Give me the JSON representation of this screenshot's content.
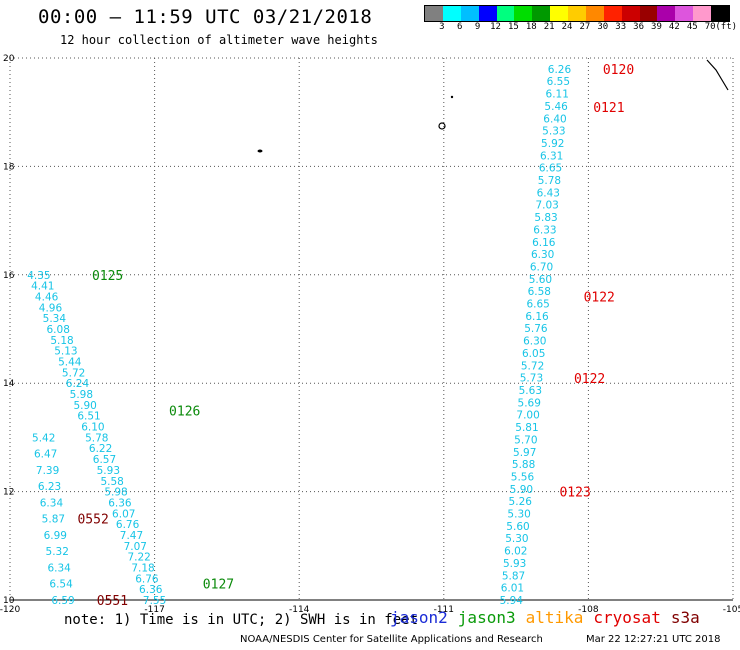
{
  "header": {
    "title": "00:00 – 11:59 UTC 03/21/2018",
    "subtitle": "12 hour collection of altimeter wave heights"
  },
  "color_scale": {
    "unit": "(ft)",
    "colors": [
      "#808080",
      "#00ffff",
      "#00bfff",
      "#0000ff",
      "#00ff7f",
      "#00dd00",
      "#009900",
      "#ffff00",
      "#ffcc00",
      "#ff8800",
      "#ff2200",
      "#cc0000",
      "#990000",
      "#aa00aa",
      "#dd55dd",
      "#ff99cc",
      "#000000"
    ],
    "labels": [
      "3",
      "6",
      "9",
      "12",
      "15",
      "18",
      "21",
      "24",
      "27",
      "30",
      "33",
      "36",
      "39",
      "42",
      "45",
      "70"
    ]
  },
  "axes": {
    "x_ticks": [
      "-120",
      "-117",
      "-114",
      "-111",
      "-108",
      "-105"
    ],
    "y_ticks": [
      "10",
      "12",
      "14",
      "16",
      "18",
      "20"
    ],
    "lon_range": [
      -120,
      -105
    ],
    "lat_range": [
      10,
      20
    ]
  },
  "tracks": [
    {
      "satellite": "jason3",
      "time_labels": [
        {
          "text": "0125",
          "lon": -118.3,
          "lat": 16.0
        },
        {
          "text": "0126",
          "lon": -116.7,
          "lat": 13.5
        },
        {
          "text": "0127",
          "lon": -116.0,
          "lat": 10.3
        }
      ],
      "start": {
        "lon": -119.4,
        "lat": 16.0
      },
      "end": {
        "lon": -117.0,
        "lat": 10.0
      },
      "values": [
        "4.35",
        "4.41",
        "4.46",
        "4.96",
        "5.34",
        "6.08",
        "5.18",
        "5.13",
        "5.44",
        "5.72",
        "6.24",
        "5.98",
        "5.90",
        "6.51",
        "6.10",
        "5.78",
        "6.22",
        "6.57",
        "5.93",
        "5.58",
        "5.98",
        "6.36",
        "6.07",
        "6.76",
        "7.47",
        "7.07",
        "7.22",
        "7.18",
        "6.76",
        "6.36",
        "7.55"
      ]
    },
    {
      "satellite": "s3a",
      "time_labels": [
        {
          "text": "0552",
          "lon": -118.6,
          "lat": 11.5
        },
        {
          "text": "0551",
          "lon": -118.2,
          "lat": 10.0
        }
      ],
      "start": {
        "lon": -119.3,
        "lat": 13.0
      },
      "end": {
        "lon": -118.9,
        "lat": 10.0
      },
      "values": [
        "5.42",
        "6.47",
        "7.39",
        "6.23",
        "6.34",
        "5.87",
        "6.99",
        "5.32",
        "6.34",
        "6.54",
        "6.59"
      ]
    },
    {
      "satellite": "cryosat",
      "time_labels": [
        {
          "text": "0120",
          "lon": -107.7,
          "lat": 19.8
        },
        {
          "text": "0121",
          "lon": -107.9,
          "lat": 19.1
        },
        {
          "text": "0122",
          "lon": -108.1,
          "lat": 15.6
        },
        {
          "text": "0122",
          "lon": -108.3,
          "lat": 14.1
        },
        {
          "text": "0123",
          "lon": -108.6,
          "lat": 12.0
        }
      ],
      "start": {
        "lon": -108.6,
        "lat": 19.8
      },
      "end": {
        "lon": -109.6,
        "lat": 10.0
      },
      "values": [
        "6.26",
        "6.55",
        "6.11",
        "5.46",
        "6.40",
        "5.33",
        "5.92",
        "6.31",
        "6.65",
        "5.78",
        "6.43",
        "7.03",
        "5.83",
        "6.33",
        "6.16",
        "6.30",
        "6.70",
        "5.60",
        "6.58",
        "6.65",
        "6.16",
        "5.76",
        "6.30",
        "6.05",
        "5.72",
        "5.73",
        "5.63",
        "5.69",
        "7.00",
        "5.81",
        "5.70",
        "5.97",
        "5.88",
        "5.56",
        "5.90",
        "5.26",
        "5.30",
        "5.60",
        "5.30",
        "6.02",
        "5.93",
        "5.87",
        "6.01",
        "5.94"
      ]
    }
  ],
  "footer": {
    "note": "note: 1) Time is in UTC; 2) SWH is in feet",
    "satellites": [
      {
        "name": "jason2",
        "color": "#1a2bd6"
      },
      {
        "name": "jason3",
        "color": "#0a9a0a"
      },
      {
        "name": "altika",
        "color": "#ff9900"
      },
      {
        "name": "cryosat",
        "color": "#e00000"
      },
      {
        "name": "s3a",
        "color": "#800000"
      }
    ],
    "credit": "NOAA/NESDIS Center for Satellite Applications and Research",
    "timestamp": "Mar 22 12:27:21 UTC 2018"
  },
  "colors": {
    "value_text": "#17c4e6",
    "grid": "#555555"
  }
}
